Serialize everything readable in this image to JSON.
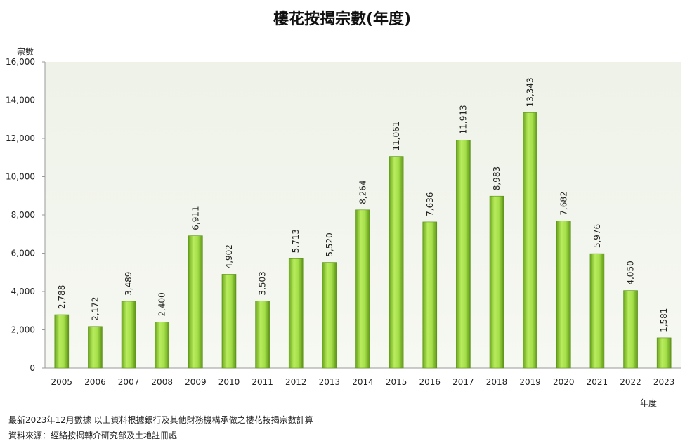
{
  "chart_data": {
    "type": "bar",
    "title": "樓花按揭宗數(年度)",
    "ylabel": "宗數",
    "xlabel": "年度",
    "ylim": [
      0,
      16000
    ],
    "yticks": [
      0,
      2000,
      4000,
      6000,
      8000,
      10000,
      12000,
      14000,
      16000
    ],
    "ytick_labels": [
      "0",
      "2,000",
      "4,000",
      "6,000",
      "8,000",
      "10,000",
      "12,000",
      "14,000",
      "16,000"
    ],
    "categories": [
      "2005",
      "2006",
      "2007",
      "2008",
      "2009",
      "2010",
      "2011",
      "2012",
      "2013",
      "2014",
      "2015",
      "2016",
      "2017",
      "2018",
      "2019",
      "2020",
      "2021",
      "2022",
      "2023"
    ],
    "values": [
      2788,
      2172,
      3489,
      2400,
      6911,
      4902,
      3503,
      5713,
      5520,
      8264,
      11061,
      7636,
      11913,
      8983,
      13343,
      7682,
      5976,
      4050,
      1581
    ],
    "value_labels": [
      "2,788",
      "2,172",
      "3,489",
      "2,400",
      "6,911",
      "4,902",
      "3,503",
      "5,713",
      "5,520",
      "8,264",
      "11,061",
      "7,636",
      "11,913",
      "8,983",
      "13,343",
      "7,682",
      "5,976",
      "4,050",
      "1,581"
    ],
    "bar_color": "#8fd12e",
    "plot_bg": "#f2f5ec",
    "grid": false
  },
  "footnotes": {
    "note": "最新2023年12月數據 以上資料根據銀行及其他財務機構承做之樓花按揭宗數計算",
    "source": "資料來源：經絡按揭轉介研究部及土地註冊處"
  }
}
